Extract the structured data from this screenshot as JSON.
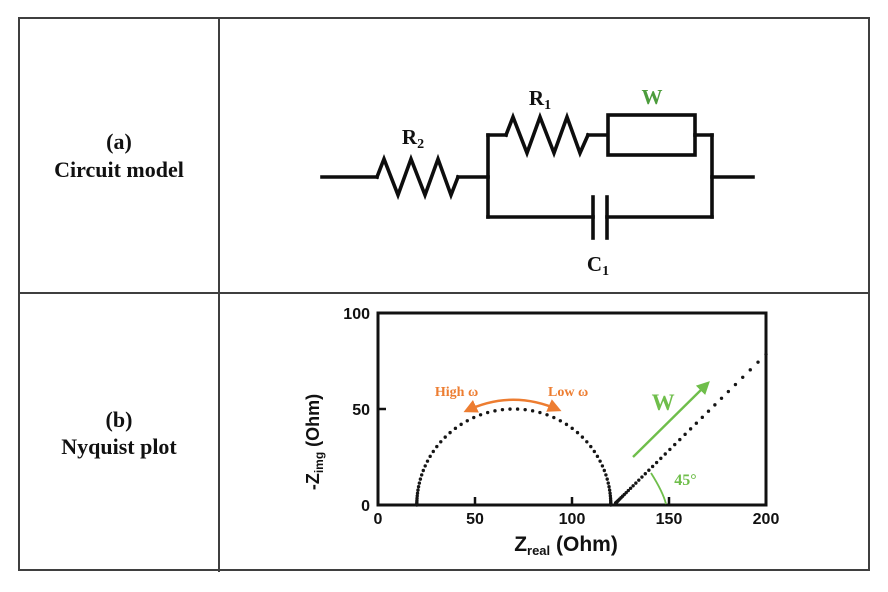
{
  "figure": {
    "rows": [
      {
        "tag": "(a)",
        "label": "Circuit model"
      },
      {
        "tag": "(b)",
        "label": "Nyquist plot"
      }
    ]
  },
  "colors": {
    "accent_orange": "#ED7D31",
    "accent_green_plot": "#6FBE4B",
    "accent_green_circuit": "#4C9C3C",
    "ink": "#111111",
    "table_border": "#3F3F3F"
  },
  "circuit": {
    "series_resistor": {
      "base": "R",
      "sub": "2"
    },
    "parallel_resistor": {
      "base": "R",
      "sub": "1"
    },
    "warburg_element": {
      "base": "W",
      "sub": ""
    },
    "capacitor": {
      "base": "C",
      "sub": "1"
    }
  },
  "chart_data": {
    "type": "scatter",
    "title": "",
    "xlabel": {
      "base": "Z",
      "sub": "real",
      "suffix": " (Ohm)"
    },
    "ylabel": {
      "base": "-Z",
      "sub": "img",
      "suffix": " (Ohm)"
    },
    "xlim": [
      0,
      200
    ],
    "ylim": [
      0,
      100
    ],
    "xticks": [
      0,
      50,
      100,
      150,
      200
    ],
    "yticks": [
      0,
      50,
      100
    ],
    "grid": false,
    "dot_color": "#151515",
    "series": [
      {
        "name": "kinetic-semicircle",
        "shape": "semicircle",
        "x_start": 20,
        "x_end": 120,
        "peak_y": 50,
        "n_points": 64,
        "note": "semicircle: R2=20 Ohm offset, diameter R1=100 Ohm, apex at (70,50)"
      },
      {
        "name": "warburg-diffusion-line",
        "shape": "line",
        "start": [
          122.5,
          1
        ],
        "end": [
          200,
          78.5
        ],
        "n_points": 40,
        "angle_deg": 45,
        "density_exponent": 2.1
      }
    ],
    "annotations": [
      {
        "id": "high-omega",
        "text": "High ω",
        "color": "#ED7D31",
        "x": 40.5,
        "y": 59.5,
        "font": 14
      },
      {
        "id": "low-omega",
        "text": "Low ω",
        "color": "#ED7D31",
        "x": 98,
        "y": 59.5,
        "font": 14
      },
      {
        "id": "warburg-w",
        "text": "W",
        "color": "#6FBE4B",
        "x": 147,
        "y": 52,
        "font": 23
      },
      {
        "id": "angle-45",
        "text": "45°",
        "color": "#6FBE4B",
        "x": 158.5,
        "y": 13,
        "font": 16
      }
    ]
  }
}
